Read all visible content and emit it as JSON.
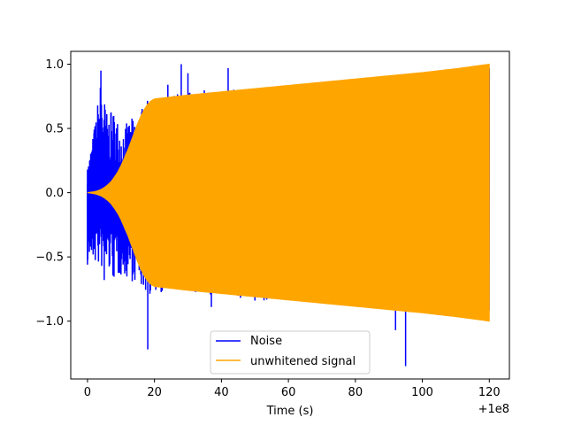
{
  "chart_data": {
    "type": "line",
    "title": "",
    "xlabel": "Time (s)",
    "ylabel": "",
    "x_offset_label": "+1e8",
    "xlim": [
      -5,
      126
    ],
    "ylim": [
      -1.45,
      1.1
    ],
    "xticks": [
      0,
      20,
      40,
      60,
      80,
      100,
      120
    ],
    "xtick_labels": [
      "0",
      "20",
      "40",
      "60",
      "80",
      "100",
      "120"
    ],
    "yticks": [
      1.0,
      0.5,
      0.0,
      -0.5,
      -1.0
    ],
    "ytick_labels": [
      "1.0",
      "0.5",
      "0.0",
      "−0.5",
      "−1.0"
    ],
    "grid": false,
    "legend_position": "lower-center",
    "series": [
      {
        "name": "Noise",
        "color": "#0000ff",
        "x_range": [
          0,
          120
        ],
        "envelope_upper": [
          [
            0,
            0.2
          ],
          [
            2,
            0.5
          ],
          [
            4,
            0.9
          ],
          [
            6,
            0.6
          ],
          [
            8,
            0.65
          ],
          [
            10,
            0.5
          ],
          [
            14,
            0.6
          ],
          [
            18,
            0.72
          ],
          [
            20,
            0.73
          ],
          [
            24,
            0.76
          ],
          [
            28,
            0.8
          ],
          [
            40,
            0.8
          ],
          [
            60,
            0.82
          ],
          [
            80,
            0.86
          ],
          [
            100,
            0.92
          ],
          [
            120,
            0.98
          ]
        ],
        "envelope_lower": [
          [
            0,
            -0.55
          ],
          [
            2,
            -0.55
          ],
          [
            4,
            -0.6
          ],
          [
            6,
            -0.6
          ],
          [
            8,
            -0.7
          ],
          [
            10,
            -0.65
          ],
          [
            14,
            -0.7
          ],
          [
            18,
            -0.8
          ],
          [
            20,
            -0.8
          ],
          [
            24,
            -0.76
          ],
          [
            40,
            -0.82
          ],
          [
            60,
            -0.85
          ],
          [
            80,
            -0.88
          ],
          [
            100,
            -0.95
          ],
          [
            120,
            -0.98
          ]
        ],
        "spikes": [
          [
            0,
            0.18
          ],
          [
            0,
            -0.56
          ],
          [
            2,
            0.49
          ],
          [
            4,
            0.95
          ],
          [
            5,
            -0.68
          ],
          [
            7,
            0.62
          ],
          [
            10,
            -0.58
          ],
          [
            14,
            -0.62
          ],
          [
            18,
            -1.22
          ],
          [
            20,
            0.73
          ],
          [
            24,
            0.84
          ],
          [
            28,
            1.0
          ],
          [
            30,
            0.93
          ],
          [
            37,
            -0.89
          ],
          [
            42,
            0.97
          ],
          [
            50,
            -0.84
          ],
          [
            71,
            0.86
          ],
          [
            92,
            -1.07
          ],
          [
            95,
            -1.35
          ]
        ]
      },
      {
        "name": "unwhitened signal",
        "color": "#ffa500",
        "x_range": [
          0,
          120
        ],
        "envelope": [
          [
            0,
            0.0
          ],
          [
            1,
            0.004
          ],
          [
            2,
            0.008
          ],
          [
            3,
            0.015
          ],
          [
            4,
            0.025
          ],
          [
            5,
            0.04
          ],
          [
            6,
            0.06
          ],
          [
            7,
            0.085
          ],
          [
            8,
            0.12
          ],
          [
            9,
            0.16
          ],
          [
            10,
            0.21
          ],
          [
            11,
            0.27
          ],
          [
            12,
            0.33
          ],
          [
            13,
            0.4
          ],
          [
            14,
            0.47
          ],
          [
            15,
            0.54
          ],
          [
            16,
            0.6
          ],
          [
            17,
            0.65
          ],
          [
            18,
            0.69
          ],
          [
            19,
            0.715
          ],
          [
            20,
            0.73
          ],
          [
            25,
            0.745
          ],
          [
            30,
            0.76
          ],
          [
            40,
            0.785
          ],
          [
            50,
            0.81
          ],
          [
            60,
            0.835
          ],
          [
            70,
            0.86
          ],
          [
            80,
            0.885
          ],
          [
            90,
            0.91
          ],
          [
            100,
            0.935
          ],
          [
            110,
            0.965
          ],
          [
            120,
            1.0
          ]
        ]
      }
    ]
  }
}
